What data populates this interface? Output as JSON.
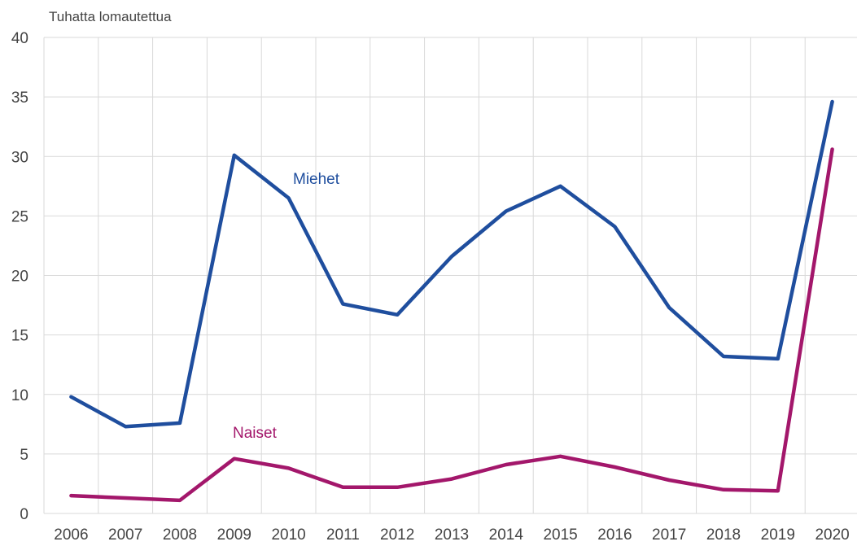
{
  "chart_data": {
    "type": "line",
    "ylabel": "Tuhatta lomautettua",
    "ylim": [
      0,
      40
    ],
    "yticks": [
      "0",
      "5",
      "10",
      "15",
      "20",
      "25",
      "30",
      "35",
      "40"
    ],
    "categories": [
      "2006",
      "2007",
      "2008",
      "2009",
      "2010",
      "2011",
      "2012",
      "2013",
      "2014",
      "2015",
      "2016",
      "2017",
      "2018",
      "2019",
      "2020"
    ],
    "grid": true,
    "series": [
      {
        "name": "Miehet",
        "color": "#1f4e9e",
        "values": [
          9.8,
          7.3,
          7.6,
          30.1,
          26.5,
          17.6,
          16.7,
          21.6,
          25.4,
          27.5,
          24.1,
          17.3,
          13.2,
          13.0,
          34.6
        ]
      },
      {
        "name": "Naiset",
        "color": "#a3176b",
        "values": [
          1.5,
          1.3,
          1.1,
          4.6,
          3.8,
          2.2,
          2.2,
          2.9,
          4.1,
          4.8,
          3.9,
          2.8,
          2.0,
          1.9,
          30.6
        ]
      }
    ]
  }
}
